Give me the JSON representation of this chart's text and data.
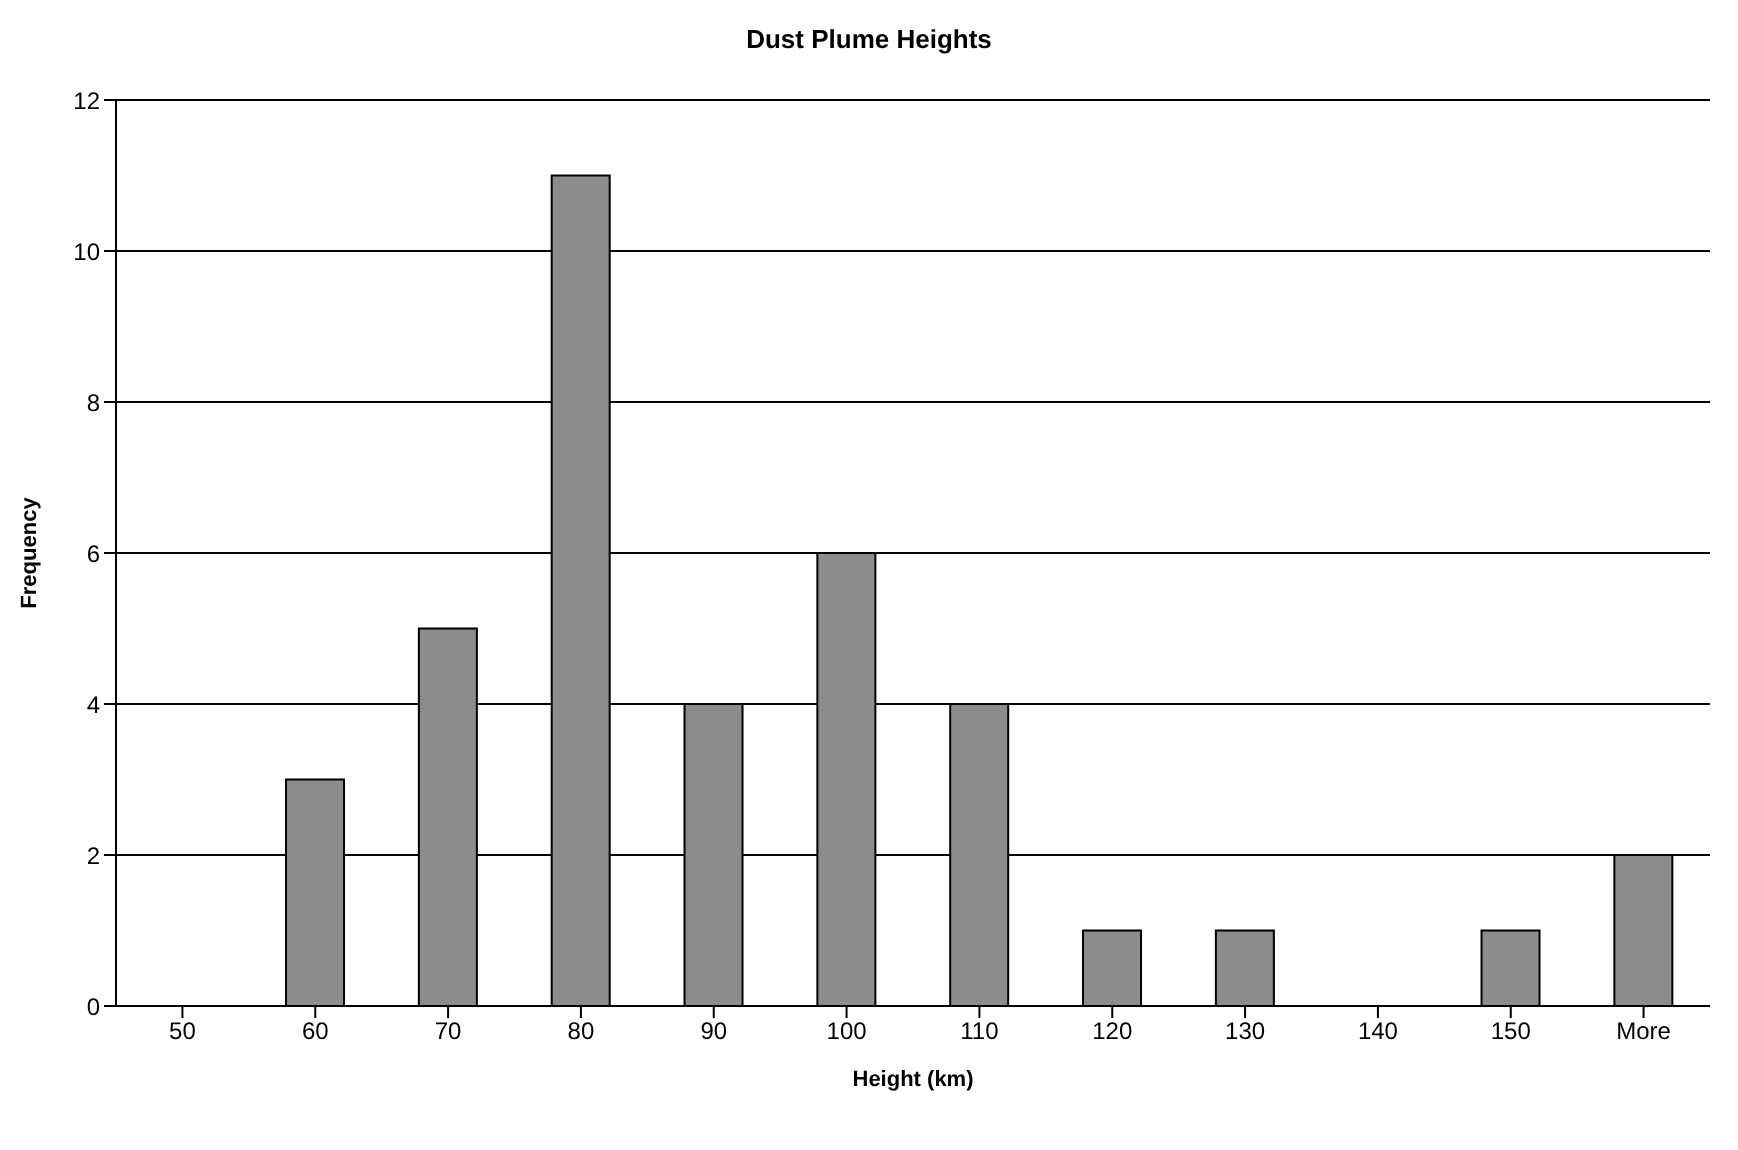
{
  "chart_data": {
    "type": "bar",
    "title": "Dust Plume Heights",
    "xlabel": "Height (km)",
    "ylabel": "Frequency",
    "categories": [
      "50",
      "60",
      "70",
      "80",
      "90",
      "100",
      "110",
      "120",
      "130",
      "140",
      "150",
      "More"
    ],
    "values": [
      0,
      3,
      5,
      11,
      4,
      6,
      4,
      1,
      1,
      0,
      1,
      2
    ],
    "color": "#8c8c8c",
    "ylim": [
      0,
      12
    ],
    "yticks": [
      0,
      2,
      4,
      6,
      8,
      10,
      12
    ],
    "grid": "y",
    "legend": false
  }
}
